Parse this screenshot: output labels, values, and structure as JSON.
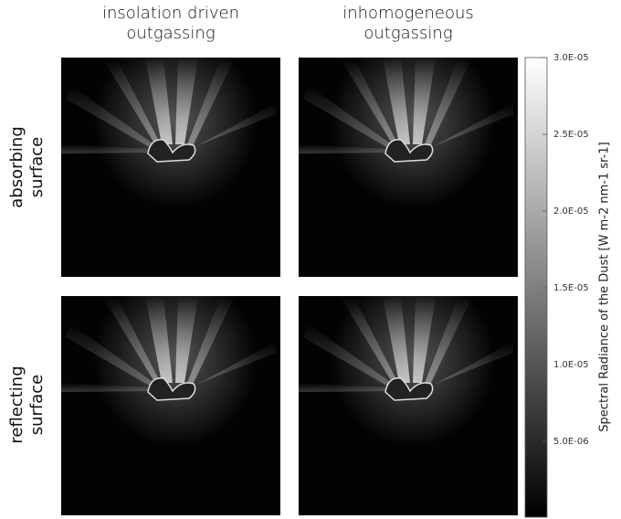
{
  "chart_data": {
    "type": "image-grid",
    "columns": [
      "insolation driven outgassing",
      "inhomogeneous outgassing"
    ],
    "rows": [
      "absorbing surface",
      "reflecting surface"
    ],
    "colorbar": {
      "label": "Spectral Radiance of the Dust [W m-2 nm-1 sr-1]",
      "ylim": [
        0,
        3e-05
      ],
      "yticks": [
        {
          "value": 5e-06,
          "label": "5.0E-06"
        },
        {
          "value": 1e-05,
          "label": "1.0E-05"
        },
        {
          "value": 1.5e-05,
          "label": "1.5E-05"
        },
        {
          "value": 2e-05,
          "label": "2.0E-05"
        },
        {
          "value": 2.5e-05,
          "label": "2.5E-05"
        },
        {
          "value": 3e-05,
          "label": "3.0E-05"
        }
      ]
    }
  }
}
